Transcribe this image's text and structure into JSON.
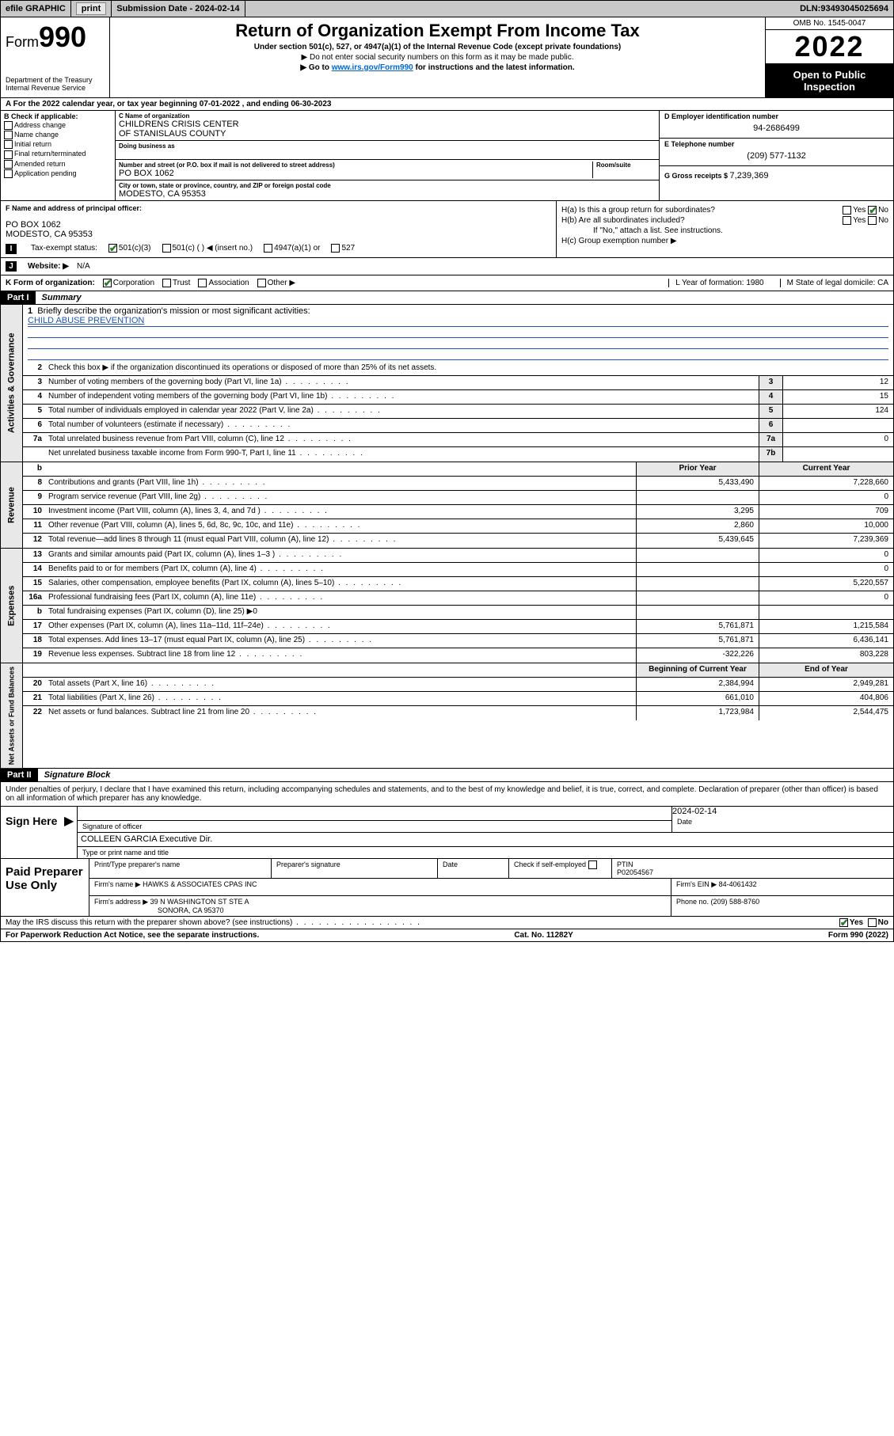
{
  "topbar": {
    "efile": "efile GRAPHIC",
    "print": "print",
    "subdate_lbl": "Submission Date - ",
    "subdate": "2024-02-14",
    "dln_lbl": "DLN: ",
    "dln": "93493045025694"
  },
  "header": {
    "form_prefix": "Form",
    "form_num": "990",
    "dept": "Department of the Treasury",
    "irs": "Internal Revenue Service",
    "title": "Return of Organization Exempt From Income Tax",
    "sub1": "Under section 501(c), 527, or 4947(a)(1) of the Internal Revenue Code (except private foundations)",
    "sub2": "▶ Do not enter social security numbers on this form as it may be made public.",
    "sub3_pre": "▶ Go to ",
    "sub3_link": "www.irs.gov/Form990",
    "sub3_post": " for instructions and the latest information.",
    "omb": "OMB No. 1545-0047",
    "year": "2022",
    "inspect": "Open to Public Inspection"
  },
  "period": {
    "a_pre": "A For the 2022 calendar year, or tax year beginning ",
    "begin": "07-01-2022",
    "mid": " , and ending ",
    "end": "06-30-2023"
  },
  "secB": {
    "lbl": "B Check if applicable:",
    "opts": [
      "Address change",
      "Name change",
      "Initial return",
      "Final return/terminated",
      "Amended return",
      "Application pending"
    ]
  },
  "secC": {
    "name_lbl": "C Name of organization",
    "name1": "CHILDRENS CRISIS CENTER",
    "name2": "OF STANISLAUS COUNTY",
    "dba_lbl": "Doing business as",
    "addr_lbl": "Number and street (or P.O. box if mail is not delivered to street address)",
    "room_lbl": "Room/suite",
    "addr": "PO BOX 1062",
    "city_lbl": "City or town, state or province, country, and ZIP or foreign postal code",
    "city": "MODESTO, CA  95353"
  },
  "secD": {
    "ein_lbl": "D Employer identification number",
    "ein": "94-2686499",
    "tel_lbl": "E Telephone number",
    "tel": "(209) 577-1132",
    "gross_lbl": "G Gross receipts $ ",
    "gross": "7,239,369"
  },
  "secF": {
    "lbl": "F Name and address of principal officer:",
    "l1": "PO BOX 1062",
    "l2": "MODESTO, CA  95353"
  },
  "secH": {
    "ha": "H(a)  Is this a group return for subordinates?",
    "hb": "H(b)  Are all subordinates included?",
    "hb_note": "If \"No,\" attach a list. See instructions.",
    "hc": "H(c)  Group exemption number ▶",
    "yes": "Yes",
    "no": "No"
  },
  "rowI": {
    "lbl": "Tax-exempt status:",
    "o1": "501(c)(3)",
    "o2": "501(c) (  ) ◀ (insert no.)",
    "o3": "4947(a)(1) or",
    "o4": "527"
  },
  "rowJ": {
    "lbl": "Website: ▶",
    "val": "N/A"
  },
  "rowK": {
    "lbl": "K Form of organization:",
    "o1": "Corporation",
    "o2": "Trust",
    "o3": "Association",
    "o4": "Other ▶",
    "L": "L Year of formation: 1980",
    "M": "M State of legal domicile: CA"
  },
  "part1": {
    "hdr": "Part I",
    "title": "Summary"
  },
  "mission": {
    "num": "1",
    "lbl": "Briefly describe the organization's mission or most significant activities:",
    "text": "CHILD ABUSE PREVENTION"
  },
  "gov": {
    "vtab": "Activities & Governance",
    "l2": "Check this box ▶        if the organization discontinued its operations or disposed of more than 25% of its net assets.",
    "rows": [
      {
        "n": "3",
        "d": "Number of voting members of the governing body (Part VI, line 1a)",
        "c": "3",
        "v": "12"
      },
      {
        "n": "4",
        "d": "Number of independent voting members of the governing body (Part VI, line 1b)",
        "c": "4",
        "v": "15"
      },
      {
        "n": "5",
        "d": "Total number of individuals employed in calendar year 2022 (Part V, line 2a)",
        "c": "5",
        "v": "124"
      },
      {
        "n": "6",
        "d": "Total number of volunteers (estimate if necessary)",
        "c": "6",
        "v": ""
      },
      {
        "n": "7a",
        "d": "Total unrelated business revenue from Part VIII, column (C), line 12",
        "c": "7a",
        "v": "0"
      },
      {
        "n": "",
        "d": "Net unrelated business taxable income from Form 990-T, Part I, line 11",
        "c": "7b",
        "v": ""
      }
    ]
  },
  "rev": {
    "vtab": "Revenue",
    "h1": "Prior Year",
    "h2": "Current Year",
    "rows": [
      {
        "n": "8",
        "d": "Contributions and grants (Part VIII, line 1h)",
        "p": "5,433,490",
        "c": "7,228,660"
      },
      {
        "n": "9",
        "d": "Program service revenue (Part VIII, line 2g)",
        "p": "",
        "c": "0"
      },
      {
        "n": "10",
        "d": "Investment income (Part VIII, column (A), lines 3, 4, and 7d )",
        "p": "3,295",
        "c": "709"
      },
      {
        "n": "11",
        "d": "Other revenue (Part VIII, column (A), lines 5, 6d, 8c, 9c, 10c, and 11e)",
        "p": "2,860",
        "c": "10,000"
      },
      {
        "n": "12",
        "d": "Total revenue—add lines 8 through 11 (must equal Part VIII, column (A), line 12)",
        "p": "5,439,645",
        "c": "7,239,369"
      }
    ]
  },
  "exp": {
    "vtab": "Expenses",
    "rows": [
      {
        "n": "13",
        "d": "Grants and similar amounts paid (Part IX, column (A), lines 1–3 )",
        "p": "",
        "c": "0"
      },
      {
        "n": "14",
        "d": "Benefits paid to or for members (Part IX, column (A), line 4)",
        "p": "",
        "c": "0"
      },
      {
        "n": "15",
        "d": "Salaries, other compensation, employee benefits (Part IX, column (A), lines 5–10)",
        "p": "",
        "c": "5,220,557"
      },
      {
        "n": "16a",
        "d": "Professional fundraising fees (Part IX, column (A), line 11e)",
        "p": "",
        "c": "0"
      },
      {
        "n": "b",
        "d": "Total fundraising expenses (Part IX, column (D), line 25) ▶0",
        "p": null,
        "c": null
      },
      {
        "n": "17",
        "d": "Other expenses (Part IX, column (A), lines 11a–11d, 11f–24e)",
        "p": "5,761,871",
        "c": "1,215,584"
      },
      {
        "n": "18",
        "d": "Total expenses. Add lines 13–17 (must equal Part IX, column (A), line 25)",
        "p": "5,761,871",
        "c": "6,436,141"
      },
      {
        "n": "19",
        "d": "Revenue less expenses. Subtract line 18 from line 12",
        "p": "-322,226",
        "c": "803,228"
      }
    ]
  },
  "net": {
    "vtab": "Net Assets or Fund Balances",
    "h1": "Beginning of Current Year",
    "h2": "End of Year",
    "rows": [
      {
        "n": "20",
        "d": "Total assets (Part X, line 16)",
        "p": "2,384,994",
        "c": "2,949,281"
      },
      {
        "n": "21",
        "d": "Total liabilities (Part X, line 26)",
        "p": "661,010",
        "c": "404,806"
      },
      {
        "n": "22",
        "d": "Net assets or fund balances. Subtract line 21 from line 20",
        "p": "1,723,984",
        "c": "2,544,475"
      }
    ]
  },
  "part2": {
    "hdr": "Part II",
    "title": "Signature Block"
  },
  "decl": "Under penalties of perjury, I declare that I have examined this return, including accompanying schedules and statements, and to the best of my knowledge and belief, it is true, correct, and complete. Declaration of preparer (other than officer) is based on all information of which preparer has any knowledge.",
  "sign": {
    "here": "Sign Here",
    "sig_lbl": "Signature of officer",
    "date_lbl": "Date",
    "date": "2024-02-14",
    "name": "COLLEEN GARCIA  Executive Dir.",
    "name_lbl": "Type or print name and title"
  },
  "paid": {
    "left": "Paid Preparer Use Only",
    "h1": "Print/Type preparer's name",
    "h2": "Preparer's signature",
    "h3": "Date",
    "h4_chk": "Check         if self-employed",
    "h5": "PTIN",
    "ptin": "P02054567",
    "firm_lbl": "Firm's name    ▶ ",
    "firm": "HAWKS & ASSOCIATES CPAS INC",
    "ein_lbl": "Firm's EIN ▶ ",
    "ein": "84-4061432",
    "addr_lbl": "Firm's address ▶ ",
    "addr1": "39 N WASHINGTON ST STE A",
    "addr2": "SONORA, CA  95370",
    "phone_lbl": "Phone no. ",
    "phone": "(209) 588-8760"
  },
  "discuss": {
    "q": "May the IRS discuss this return with the preparer shown above? (see instructions)",
    "yes": "Yes",
    "no": "No"
  },
  "footer": {
    "l": "For Paperwork Reduction Act Notice, see the separate instructions.",
    "m": "Cat. No. 11282Y",
    "r": "Form 990 (2022)"
  }
}
